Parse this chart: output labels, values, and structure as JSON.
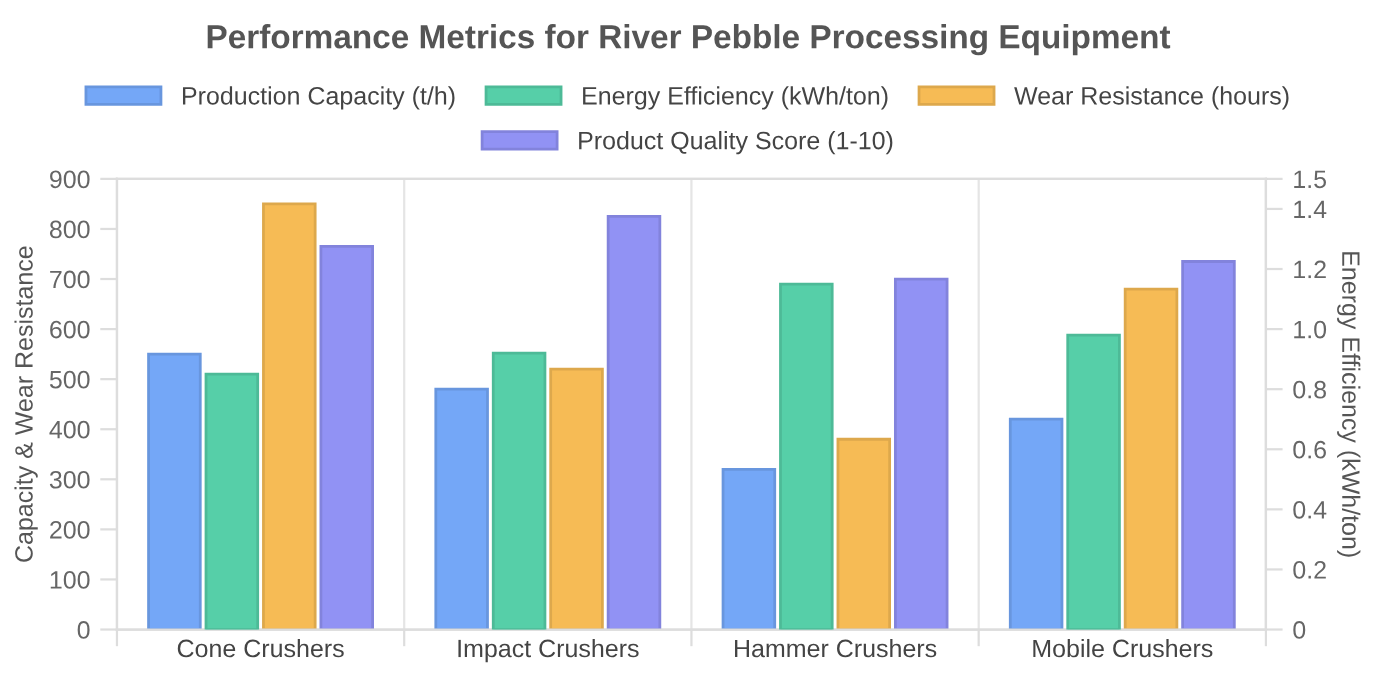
{
  "chart_data": {
    "type": "bar",
    "title": "Performance Metrics for River Pebble Processing Equipment",
    "categories": [
      "Cone Crushers",
      "Impact Crushers",
      "Hammer Crushers",
      "Mobile Crushers"
    ],
    "series": [
      {
        "name": "Production Capacity (t/h)",
        "color": "#74a7f7",
        "values": [
          550,
          480,
          320,
          420
        ]
      },
      {
        "name": "Energy Efficiency (kWh/ton)",
        "color": "#56cfa8",
        "values": [
          0.85,
          0.92,
          1.15,
          0.98
        ],
        "axis": "y2"
      },
      {
        "name": "Wear Resistance (hours)",
        "color": "#f6bb55",
        "values": [
          850,
          520,
          380,
          680
        ]
      },
      {
        "name": "Product Quality Score (1-10)",
        "color": "#9192f4",
        "values": [
          765,
          825,
          700,
          735
        ]
      }
    ],
    "ylabel": "Capacity & Wear Resistance",
    "y2label": "Energy Efficiency (kWh/ton)",
    "ylim": [
      0,
      900
    ],
    "yticks": [
      0,
      100,
      200,
      300,
      400,
      500,
      600,
      700,
      800,
      900
    ],
    "y2lim": [
      0,
      1.5
    ],
    "y2ticks": [
      {
        "value": 0,
        "label": "0"
      },
      0.2,
      0.4,
      0.6,
      0.8,
      {
        "value": 1.0,
        "label": "1.0"
      },
      1.2,
      1.4,
      1.5
    ],
    "grid": "x",
    "legend": "top"
  }
}
